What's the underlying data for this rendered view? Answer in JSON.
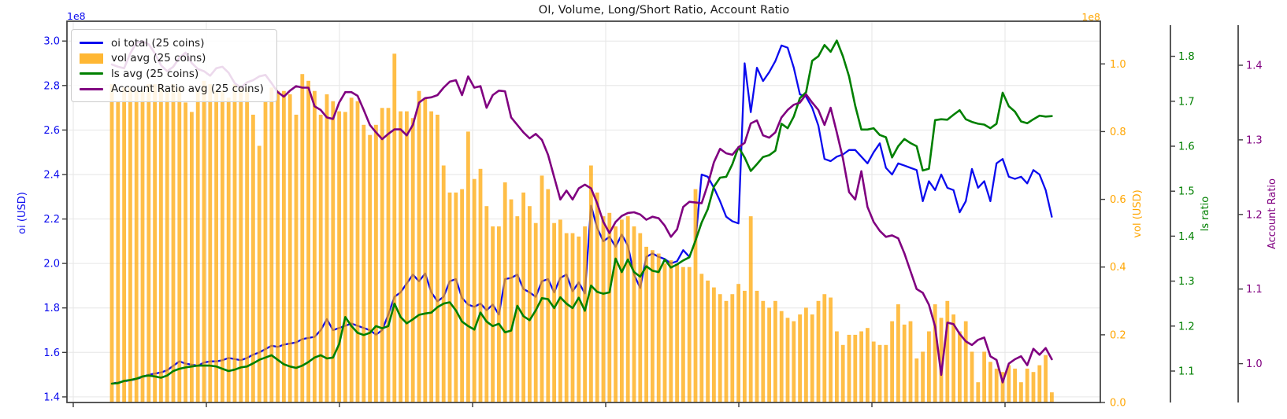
{
  "chart_data": {
    "type": "combo",
    "title": "OI, Volume, Long/Short Ratio, Account Ratio",
    "x_axis": {
      "tick_labels": [],
      "note": "time axis, tick marks only, no labels visible"
    },
    "axes": {
      "oi": {
        "label": "oi (USD)",
        "offset_text": "1e8",
        "side": "left",
        "color": "#0b0bee",
        "ticks": [
          "3.0",
          "2.8",
          "2.6",
          "2.4",
          "2.2",
          "2.0",
          "1.8",
          "1.6",
          "1.4"
        ],
        "tick_values": [
          3.0,
          2.8,
          2.6,
          2.4,
          2.2,
          2.0,
          1.8,
          1.6,
          1.4
        ],
        "ylim": [
          1.375,
          3.089
        ]
      },
      "vol": {
        "label": "vol (USD)",
        "offset_text": "1e8",
        "side": "right",
        "color": "#ffa500",
        "ticks": [
          "1.0",
          "0.8",
          "0.6",
          "0.4",
          "0.2",
          "0.0"
        ],
        "tick_values": [
          1.0,
          0.8,
          0.6,
          0.4,
          0.2,
          0.0
        ],
        "ylim": [
          0,
          1.126
        ]
      },
      "ls": {
        "label": "ls ratio",
        "offset_text": "",
        "side": "right-offset-1",
        "color": "#008000",
        "ticks": [
          "1.8",
          "1.7",
          "1.6",
          "1.5",
          "1.4",
          "1.3",
          "1.2",
          "1.1"
        ],
        "tick_values": [
          1.8,
          1.7,
          1.6,
          1.5,
          1.4,
          1.3,
          1.2,
          1.1
        ],
        "ylim": [
          1.03,
          1.878
        ]
      },
      "acct": {
        "label": "Account Ratio",
        "offset_text": "",
        "side": "right-offset-2",
        "color": "#800080",
        "ticks": [
          "1.4",
          "1.3",
          "1.2",
          "1.1",
          "1.0"
        ],
        "tick_values": [
          1.4,
          1.3,
          1.2,
          1.1,
          1.0
        ],
        "ylim": [
          0.948,
          1.459
        ]
      }
    },
    "grid": true,
    "legend_position": "upper-left",
    "series": [
      {
        "name": "oi total (25 coins)",
        "type": "line",
        "axis": "oi",
        "color": "#0b0bee",
        "values": [
          1.46,
          1.465,
          1.47,
          1.475,
          1.48,
          1.49,
          1.5,
          1.505,
          1.51,
          1.52,
          1.54,
          1.56,
          1.55,
          1.545,
          1.54,
          1.555,
          1.56,
          1.56,
          1.565,
          1.575,
          1.57,
          1.565,
          1.575,
          1.59,
          1.6,
          1.615,
          1.63,
          1.625,
          1.635,
          1.64,
          1.645,
          1.66,
          1.665,
          1.67,
          1.7,
          1.75,
          1.7,
          1.71,
          1.72,
          1.73,
          1.72,
          1.71,
          1.7,
          1.68,
          1.7,
          1.77,
          1.85,
          1.87,
          1.91,
          1.95,
          1.92,
          1.955,
          1.87,
          1.83,
          1.85,
          1.92,
          1.93,
          1.845,
          1.815,
          1.805,
          1.82,
          1.79,
          1.815,
          1.77,
          1.93,
          1.935,
          1.95,
          1.885,
          1.87,
          1.85,
          1.92,
          1.93,
          1.87,
          1.935,
          1.95,
          1.875,
          1.915,
          1.865,
          2.26,
          2.16,
          2.1,
          2.12,
          2.075,
          2.13,
          2.08,
          1.95,
          1.89,
          2.03,
          2.045,
          2.03,
          2.02,
          2.0,
          2.01,
          2.06,
          2.03,
          2.1,
          2.4,
          2.39,
          2.34,
          2.28,
          2.21,
          2.19,
          2.18,
          2.9,
          2.68,
          2.88,
          2.82,
          2.86,
          2.91,
          2.98,
          2.97,
          2.88,
          2.76,
          2.75,
          2.7,
          2.62,
          2.47,
          2.46,
          2.48,
          2.49,
          2.51,
          2.51,
          2.48,
          2.45,
          2.5,
          2.54,
          2.43,
          2.4,
          2.45,
          2.44,
          2.43,
          2.42,
          2.28,
          2.37,
          2.33,
          2.4,
          2.34,
          2.33,
          2.23,
          2.28,
          2.425,
          2.34,
          2.37,
          2.28,
          2.45,
          2.47,
          2.39,
          2.38,
          2.39,
          2.36,
          2.42,
          2.4,
          2.33,
          2.21
        ]
      },
      {
        "name": "vol avg (25 coins)",
        "type": "bar",
        "axis": "vol",
        "color": "#ffa500",
        "values": [
          0.94,
          0.89,
          0.93,
          0.93,
          0.92,
          0.92,
          0.94,
          0.94,
          0.93,
          0.92,
          0.94,
          0.93,
          0.886,
          0.858,
          0.92,
          0.95,
          0.94,
          0.92,
          0.92,
          0.9,
          0.94,
          0.93,
          0.93,
          0.85,
          0.758,
          0.89,
          0.93,
          0.92,
          0.92,
          0.91,
          0.85,
          0.97,
          0.95,
          0.92,
          0.85,
          0.91,
          0.89,
          0.86,
          0.858,
          0.9,
          0.89,
          0.82,
          0.79,
          0.82,
          0.87,
          0.87,
          1.03,
          0.86,
          0.86,
          0.84,
          0.92,
          0.9,
          0.86,
          0.85,
          0.7,
          0.62,
          0.62,
          0.63,
          0.8,
          0.66,
          0.69,
          0.58,
          0.52,
          0.52,
          0.65,
          0.6,
          0.55,
          0.62,
          0.58,
          0.53,
          0.67,
          0.63,
          0.53,
          0.54,
          0.5,
          0.5,
          0.49,
          0.52,
          0.7,
          0.62,
          0.55,
          0.56,
          0.52,
          0.54,
          0.55,
          0.52,
          0.5,
          0.46,
          0.45,
          0.44,
          0.41,
          0.42,
          0.41,
          0.4,
          0.4,
          0.63,
          0.38,
          0.36,
          0.34,
          0.32,
          0.3,
          0.32,
          0.35,
          0.33,
          0.55,
          0.33,
          0.3,
          0.28,
          0.3,
          0.27,
          0.25,
          0.24,
          0.26,
          0.28,
          0.26,
          0.3,
          0.32,
          0.31,
          0.21,
          0.17,
          0.2,
          0.2,
          0.21,
          0.22,
          0.18,
          0.17,
          0.17,
          0.24,
          0.29,
          0.23,
          0.24,
          0.13,
          0.15,
          0.21,
          0.29,
          0.25,
          0.3,
          0.26,
          0.21,
          0.24,
          0.15,
          0.06,
          0.15,
          0.12,
          0.1,
          0.09,
          0.11,
          0.1,
          0.06,
          0.1,
          0.09,
          0.11,
          0.14,
          0.03
        ]
      },
      {
        "name": "ls avg (25 coins)",
        "type": "line",
        "axis": "ls",
        "color": "#008000",
        "values": [
          1.072,
          1.073,
          1.078,
          1.08,
          1.083,
          1.088,
          1.09,
          1.088,
          1.085,
          1.09,
          1.1,
          1.105,
          1.108,
          1.11,
          1.112,
          1.112,
          1.112,
          1.11,
          1.105,
          1.1,
          1.103,
          1.108,
          1.11,
          1.117,
          1.125,
          1.13,
          1.135,
          1.125,
          1.115,
          1.11,
          1.107,
          1.112,
          1.12,
          1.13,
          1.135,
          1.128,
          1.13,
          1.16,
          1.22,
          1.2,
          1.185,
          1.18,
          1.185,
          1.2,
          1.195,
          1.2,
          1.25,
          1.22,
          1.206,
          1.215,
          1.225,
          1.228,
          1.23,
          1.242,
          1.25,
          1.253,
          1.235,
          1.21,
          1.2,
          1.192,
          1.23,
          1.21,
          1.2,
          1.205,
          1.186,
          1.19,
          1.245,
          1.222,
          1.213,
          1.235,
          1.262,
          1.26,
          1.24,
          1.264,
          1.25,
          1.24,
          1.263,
          1.234,
          1.29,
          1.276,
          1.272,
          1.275,
          1.35,
          1.32,
          1.348,
          1.32,
          1.31,
          1.333,
          1.323,
          1.32,
          1.348,
          1.33,
          1.337,
          1.346,
          1.353,
          1.39,
          1.43,
          1.46,
          1.51,
          1.53,
          1.532,
          1.56,
          1.598,
          1.575,
          1.545,
          1.56,
          1.576,
          1.58,
          1.59,
          1.65,
          1.64,
          1.666,
          1.707,
          1.72,
          1.79,
          1.8,
          1.825,
          1.81,
          1.835,
          1.8,
          1.755,
          1.69,
          1.637,
          1.637,
          1.64,
          1.625,
          1.62,
          1.575,
          1.6,
          1.616,
          1.607,
          1.6,
          1.546,
          1.55,
          1.658,
          1.66,
          1.659,
          1.67,
          1.68,
          1.66,
          1.654,
          1.65,
          1.648,
          1.64,
          1.65,
          1.719,
          1.689,
          1.677,
          1.655,
          1.651,
          1.66,
          1.668,
          1.666,
          1.667
        ]
      },
      {
        "name": "Account Ratio avg (25 coins)",
        "type": "line",
        "axis": "acct",
        "color": "#800080",
        "values": [
          1.401,
          1.398,
          1.396,
          1.416,
          1.43,
          1.432,
          1.428,
          1.416,
          1.4,
          1.392,
          1.398,
          1.41,
          1.417,
          1.403,
          1.395,
          1.392,
          1.386,
          1.396,
          1.398,
          1.39,
          1.376,
          1.37,
          1.377,
          1.38,
          1.385,
          1.387,
          1.376,
          1.364,
          1.358,
          1.366,
          1.372,
          1.37,
          1.37,
          1.345,
          1.34,
          1.33,
          1.328,
          1.35,
          1.364,
          1.364,
          1.359,
          1.34,
          1.32,
          1.31,
          1.301,
          1.308,
          1.314,
          1.314,
          1.306,
          1.32,
          1.35,
          1.356,
          1.357,
          1.36,
          1.37,
          1.378,
          1.38,
          1.36,
          1.385,
          1.37,
          1.372,
          1.343,
          1.36,
          1.366,
          1.365,
          1.33,
          1.32,
          1.31,
          1.302,
          1.308,
          1.3,
          1.28,
          1.25,
          1.22,
          1.232,
          1.22,
          1.235,
          1.24,
          1.235,
          1.215,
          1.19,
          1.175,
          1.19,
          1.198,
          1.202,
          1.203,
          1.2,
          1.193,
          1.197,
          1.195,
          1.185,
          1.17,
          1.18,
          1.21,
          1.217,
          1.216,
          1.215,
          1.24,
          1.27,
          1.288,
          1.282,
          1.28,
          1.29,
          1.296,
          1.322,
          1.326,
          1.306,
          1.303,
          1.31,
          1.33,
          1.34,
          1.347,
          1.35,
          1.361,
          1.35,
          1.34,
          1.32,
          1.343,
          1.31,
          1.275,
          1.23,
          1.22,
          1.258,
          1.21,
          1.19,
          1.178,
          1.17,
          1.172,
          1.168,
          1.148,
          1.124,
          1.1,
          1.095,
          1.079,
          1.05,
          0.985,
          1.055,
          1.053,
          1.04,
          1.03,
          1.025,
          1.032,
          1.035,
          1.01,
          1.005,
          0.975,
          1.0,
          1.006,
          1.01,
          0.998,
          1.02,
          1.012,
          1.021,
          1.006
        ]
      }
    ]
  },
  "colors": {
    "grid": "#e6e6e6",
    "spine": "#3c3c3c",
    "text": "#1a1a1a",
    "bar_opacity": 0.72
  }
}
